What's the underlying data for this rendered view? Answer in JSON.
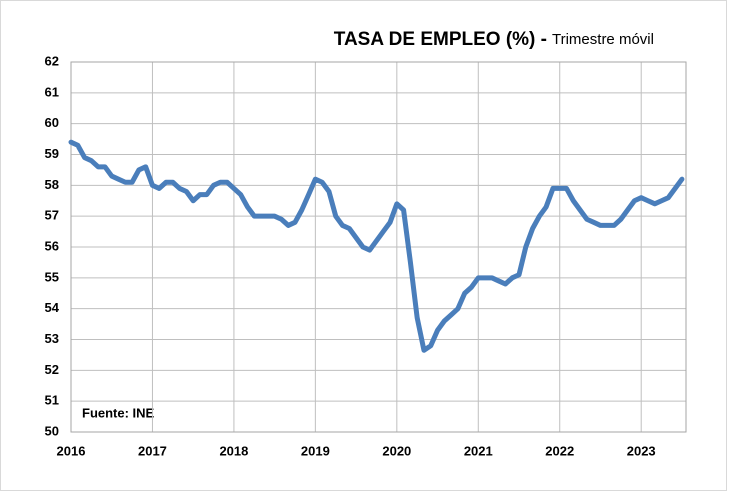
{
  "chart_data": {
    "type": "line",
    "title": "TASA DE EMPLEO (%) -",
    "subtitle": "Trimestre móvil",
    "annotation": "Fuente: INE",
    "x": [
      2016,
      2016.083,
      2016.167,
      2016.25,
      2016.333,
      2016.417,
      2016.5,
      2016.583,
      2016.667,
      2016.75,
      2016.833,
      2016.917,
      2017,
      2017.083,
      2017.167,
      2017.25,
      2017.333,
      2017.417,
      2017.5,
      2017.583,
      2017.667,
      2017.75,
      2017.833,
      2017.917,
      2018,
      2018.083,
      2018.167,
      2018.25,
      2018.333,
      2018.417,
      2018.5,
      2018.583,
      2018.667,
      2018.75,
      2018.833,
      2018.917,
      2019,
      2019.083,
      2019.167,
      2019.25,
      2019.333,
      2019.417,
      2019.5,
      2019.583,
      2019.667,
      2019.75,
      2019.833,
      2019.917,
      2020,
      2020.083,
      2020.167,
      2020.25,
      2020.333,
      2020.417,
      2020.5,
      2020.583,
      2020.667,
      2020.75,
      2020.833,
      2020.917,
      2021,
      2021.083,
      2021.167,
      2021.25,
      2021.333,
      2021.417,
      2021.5,
      2021.583,
      2021.667,
      2021.75,
      2021.833,
      2021.917,
      2022,
      2022.083,
      2022.167,
      2022.25,
      2022.333,
      2022.417,
      2022.5,
      2022.583,
      2022.667,
      2022.75,
      2022.833,
      2022.917,
      2023,
      2023.083,
      2023.167,
      2023.25,
      2023.333,
      2023.417,
      2023.5
    ],
    "series": [
      {
        "name": "Tasa de empleo",
        "color": "#4a7ebb",
        "values": [
          59.4,
          59.3,
          58.9,
          58.8,
          58.6,
          58.6,
          58.3,
          58.2,
          58.1,
          58.1,
          58.5,
          58.6,
          58.0,
          57.9,
          58.1,
          58.1,
          57.9,
          57.8,
          57.5,
          57.7,
          57.7,
          58.0,
          58.1,
          58.1,
          57.9,
          57.7,
          57.3,
          57.0,
          57.0,
          57.0,
          57.0,
          56.9,
          56.7,
          56.8,
          57.2,
          57.7,
          58.2,
          58.1,
          57.8,
          57.0,
          56.7,
          56.6,
          56.3,
          56.0,
          55.9,
          56.2,
          56.5,
          56.8,
          57.4,
          57.2,
          55.5,
          53.7,
          52.65,
          52.8,
          53.3,
          53.6,
          53.8,
          54.0,
          54.5,
          54.7,
          55.0,
          55.0,
          55.0,
          54.9,
          54.8,
          55.0,
          55.1,
          56.0,
          56.6,
          57.0,
          57.3,
          57.9,
          57.9,
          57.9,
          57.5,
          57.2,
          56.9,
          56.8,
          56.7,
          56.7,
          56.7,
          56.9,
          57.2,
          57.5,
          57.6,
          57.5,
          57.4,
          57.5,
          57.6,
          57.9,
          58.2
        ]
      }
    ],
    "xlim": [
      2016,
      2023.55
    ],
    "xticks": [
      2016,
      2017,
      2018,
      2019,
      2020,
      2021,
      2022,
      2023
    ],
    "ylim": [
      50,
      62
    ],
    "yticks": [
      50,
      51,
      52,
      53,
      54,
      55,
      56,
      57,
      58,
      59,
      60,
      61,
      62
    ],
    "grid": true
  }
}
